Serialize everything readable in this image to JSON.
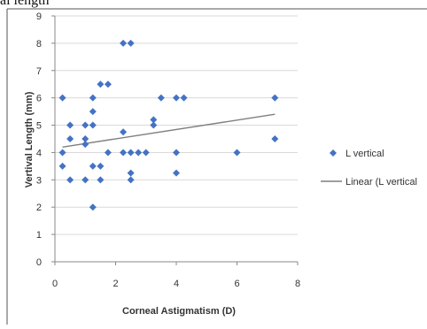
{
  "page": {
    "cropped_heading": "al length"
  },
  "chart_data": {
    "type": "scatter",
    "xlabel": "Corneal Astigmatism (D)",
    "ylabel": "Vertival Length (mm)",
    "xlim": [
      0,
      8
    ],
    "ylim": [
      0,
      9
    ],
    "x_ticks": [
      "0",
      "2",
      "4",
      "6",
      "8"
    ],
    "y_ticks": [
      "0",
      "1",
      "2",
      "3",
      "4",
      "5",
      "6",
      "7",
      "8",
      "9"
    ],
    "grid": "horizontal",
    "legend_position": "right",
    "series": [
      {
        "name": "L vertical",
        "marker": "diamond",
        "color": "#4472C4",
        "points": [
          [
            0.25,
            6
          ],
          [
            0.25,
            4
          ],
          [
            0.25,
            3.5
          ],
          [
            0.5,
            5
          ],
          [
            0.5,
            4.5
          ],
          [
            0.5,
            3
          ],
          [
            1,
            5
          ],
          [
            1,
            4.5
          ],
          [
            1,
            4.3
          ],
          [
            1,
            3
          ],
          [
            1.25,
            6
          ],
          [
            1.25,
            5.5
          ],
          [
            1.25,
            5
          ],
          [
            1.25,
            3.5
          ],
          [
            1.25,
            2
          ],
          [
            1.5,
            6.5
          ],
          [
            1.5,
            3.5
          ],
          [
            1.5,
            3
          ],
          [
            1.75,
            6.5
          ],
          [
            1.75,
            4
          ],
          [
            2.25,
            8
          ],
          [
            2.25,
            4.75
          ],
          [
            2.25,
            4
          ],
          [
            2.5,
            8
          ],
          [
            2.5,
            4
          ],
          [
            2.5,
            3.25
          ],
          [
            2.5,
            3
          ],
          [
            2.75,
            4
          ],
          [
            3,
            4
          ],
          [
            3.25,
            5.2
          ],
          [
            3.25,
            5
          ],
          [
            3.5,
            6
          ],
          [
            4,
            6
          ],
          [
            4,
            4
          ],
          [
            4,
            3.25
          ],
          [
            4.25,
            6
          ],
          [
            6,
            4
          ],
          [
            7.25,
            6
          ],
          [
            7.25,
            4.5
          ]
        ]
      },
      {
        "name": "Linear (L vertical",
        "type": "line",
        "color": "#7f7f7f",
        "points": [
          [
            0.25,
            4.2
          ],
          [
            7.25,
            5.4
          ]
        ]
      }
    ]
  }
}
